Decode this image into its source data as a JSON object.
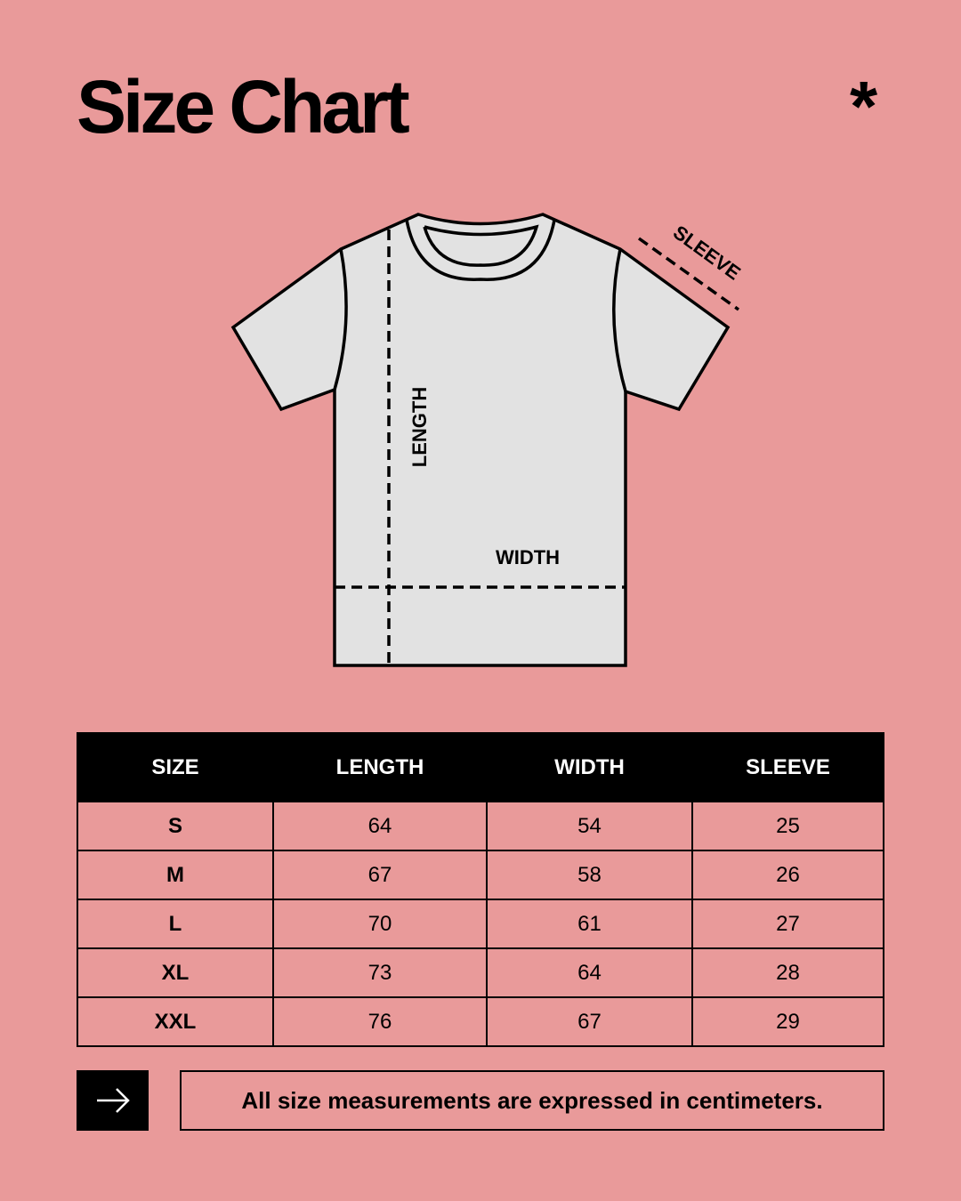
{
  "title": "Size Chart",
  "asterisk": "*",
  "diagram": {
    "length_label": "LENGTH",
    "width_label": "WIDTH",
    "sleeve_label": "SLEEVE"
  },
  "colors": {
    "background": "#E99A9A",
    "shirt": "#E2E2E2",
    "header": "#000000"
  },
  "table": {
    "headers": [
      "SIZE",
      "LENGTH",
      "WIDTH",
      "SLEEVE"
    ],
    "rows": [
      [
        "S",
        "64",
        "54",
        "25"
      ],
      [
        "M",
        "67",
        "58",
        "26"
      ],
      [
        "L",
        "70",
        "61",
        "27"
      ],
      [
        "XL",
        "73",
        "64",
        "28"
      ],
      [
        "XXL",
        "76",
        "67",
        "29"
      ]
    ]
  },
  "footer": {
    "icon": "arrow-right-icon",
    "note": "All size measurements are expressed in centimeters."
  }
}
